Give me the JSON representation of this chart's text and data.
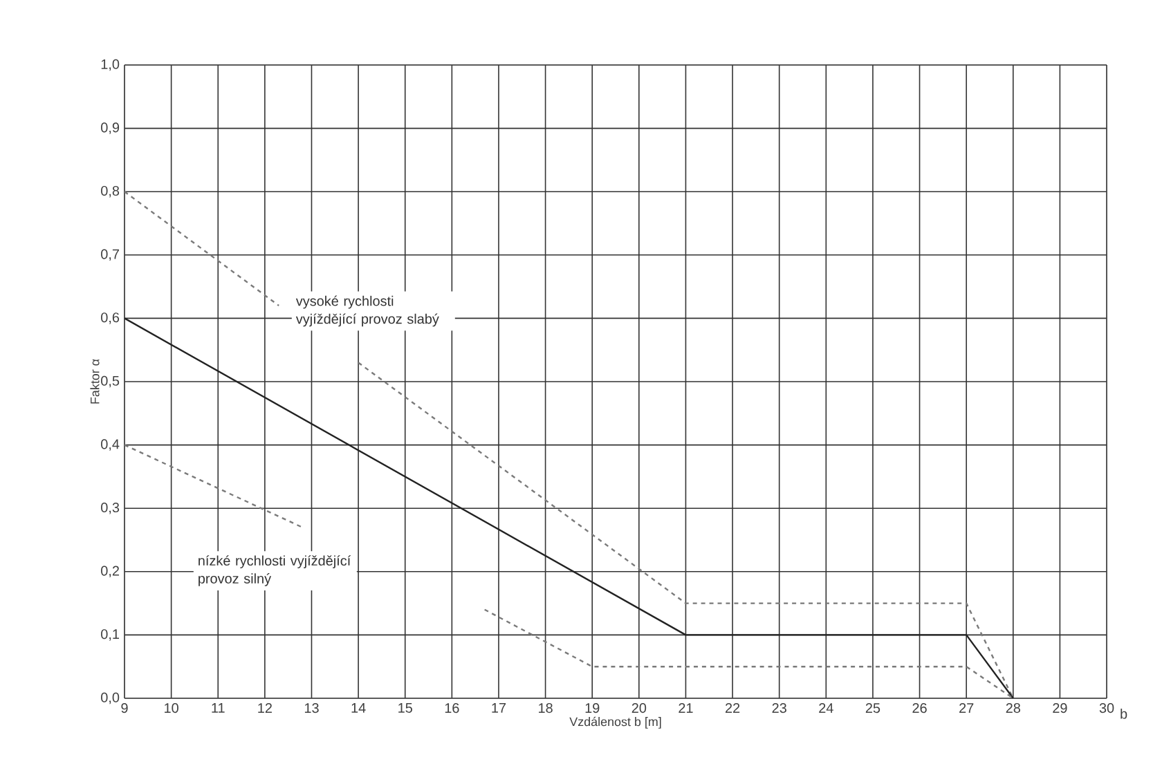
{
  "chart_data": {
    "type": "line",
    "xlabel": "Vzdálenost b  [m]",
    "ylabel": "Faktor α",
    "xlim": [
      9,
      30
    ],
    "ylim": [
      0,
      1
    ],
    "xticks": [
      9,
      10,
      11,
      12,
      13,
      14,
      15,
      16,
      17,
      18,
      19,
      20,
      21,
      22,
      23,
      24,
      25,
      26,
      27,
      28,
      29,
      30
    ],
    "yticks": [
      {
        "value": 0,
        "label": "0,0"
      },
      {
        "value": 0.1,
        "label": "0,1"
      },
      {
        "value": 0.2,
        "label": "0,2"
      },
      {
        "value": 0.3,
        "label": "0,3"
      },
      {
        "value": 0.4,
        "label": "0,4"
      },
      {
        "value": 0.5,
        "label": "0,5"
      },
      {
        "value": 0.6,
        "label": "0,6"
      },
      {
        "value": 0.7,
        "label": "0,7"
      },
      {
        "value": 0.8,
        "label": "0,8"
      },
      {
        "value": 0.9,
        "label": "0,9"
      },
      {
        "value": 1,
        "label": "1,0"
      }
    ],
    "grid": true,
    "marker": "none",
    "series": [
      {
        "color": "#7a7a7a",
        "line_style": "dashed",
        "x": [
          9,
          12.3,
          13,
          14,
          21,
          27,
          28
        ],
        "values": [
          0.8,
          0.62,
          null,
          0.53,
          0.15,
          0.15,
          0
        ]
      },
      {
        "color": "#222222",
        "line_style": "solid",
        "x": [
          9,
          21,
          27,
          28
        ],
        "values": [
          0.6,
          0.1,
          0.1,
          0
        ]
      },
      {
        "color": "#7a7a7a",
        "line_style": "dashed",
        "x": [
          9,
          12.8,
          14,
          16.7,
          19,
          27,
          28
        ],
        "values": [
          0.4,
          0.27,
          null,
          0.14,
          0.05,
          0.05,
          0
        ]
      }
    ],
    "annotations": [
      "vysoké rychlosti vyjíždějící provoz slabý",
      "nízké rychlosti vyjíždějící provoz silný",
      "b"
    ]
  }
}
